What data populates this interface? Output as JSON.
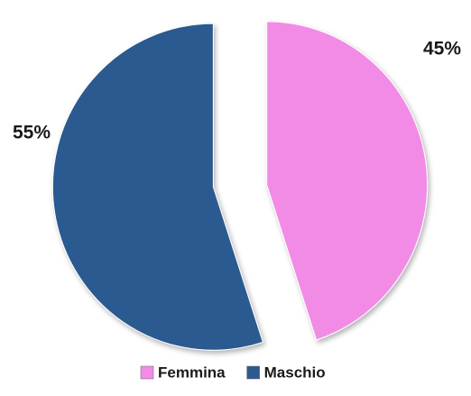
{
  "chart_data": {
    "type": "pie",
    "categories": [
      "Femmina",
      "Maschio"
    ],
    "values": [
      45,
      55
    ],
    "value_labels": [
      "45%",
      "55%"
    ],
    "colors": [
      "#f28be6",
      "#2c5a8f"
    ],
    "legend": "bottom"
  }
}
